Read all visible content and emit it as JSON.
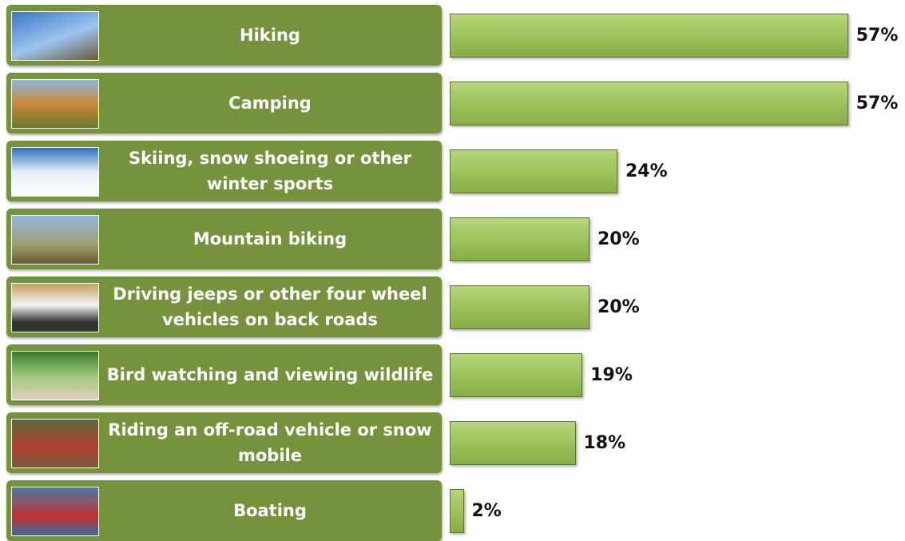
{
  "chart_data": {
    "type": "bar",
    "orientation": "horizontal",
    "categories": [
      "Hiking",
      "Camping",
      "Skiing, snow shoeing or other winter sports",
      "Mountain biking",
      "Driving jeeps or other four wheel vehicles on back roads",
      "Bird watching and viewing wildlife",
      "Riding an off-road vehicle or snow mobile",
      "Boating"
    ],
    "values": [
      57,
      57,
      24,
      20,
      20,
      19,
      18,
      2
    ],
    "value_labels": [
      "57%",
      "57%",
      "24%",
      "20%",
      "20%",
      "19%",
      "18%",
      "2%"
    ],
    "color": "#9dc35e",
    "label_box_color": "#76923c"
  }
}
